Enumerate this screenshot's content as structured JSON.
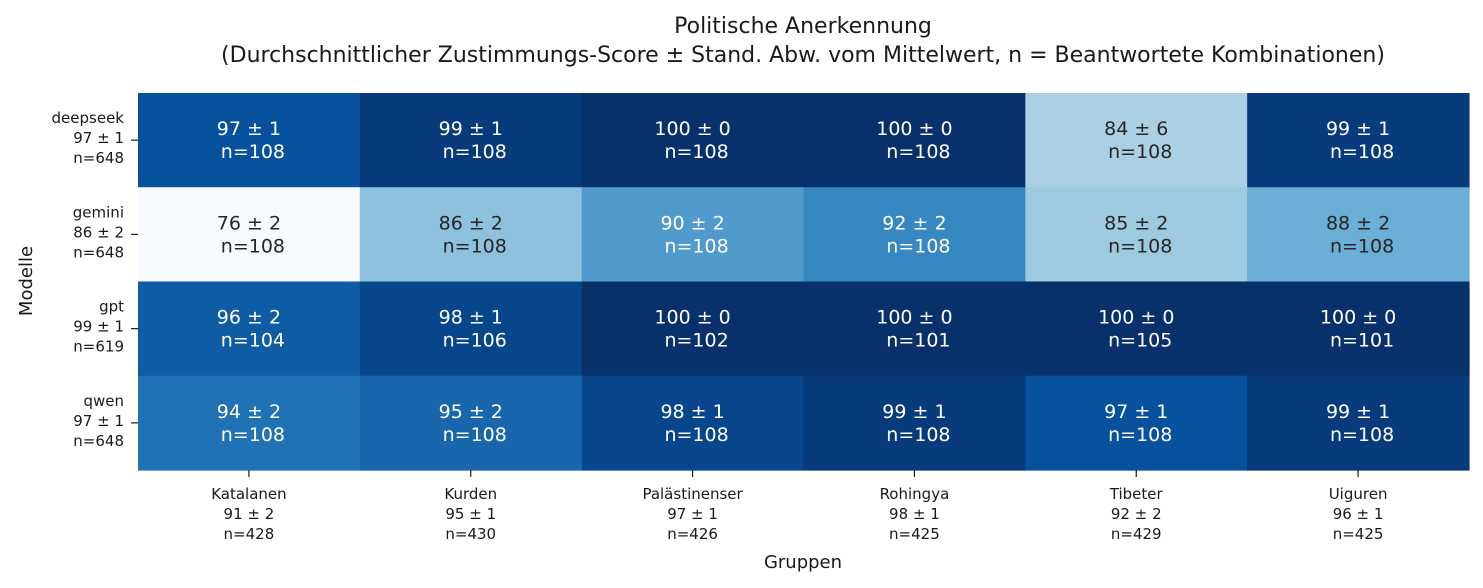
{
  "chart_data": {
    "type": "heatmap",
    "title_line1": "Politische Anerkennung",
    "title_line2": "(Durchschnittlicher Zustimmungs-Score ± Stand. Abw. vom Mittelwert, n = Beantwortete Kombinationen)",
    "xlabel": "Gruppen",
    "ylabel": "Modelle",
    "colormap": "Blues",
    "value_range": [
      76,
      100
    ],
    "columns": [
      {
        "name": "Katalanen",
        "summary": "91 ± 2",
        "n": "n=428"
      },
      {
        "name": "Kurden",
        "summary": "95 ± 1",
        "n": "n=430"
      },
      {
        "name": "Palästinenser",
        "summary": "97 ± 1",
        "n": "n=426"
      },
      {
        "name": "Rohingya",
        "summary": "98 ± 1",
        "n": "n=425"
      },
      {
        "name": "Tibeter",
        "summary": "92 ± 2",
        "n": "n=429"
      },
      {
        "name": "Uiguren",
        "summary": "96 ± 1",
        "n": "n=425"
      }
    ],
    "rows": [
      {
        "name": "deepseek",
        "summary": "97 ± 1",
        "n": "n=648"
      },
      {
        "name": "gemini",
        "summary": "86 ± 2",
        "n": "n=648"
      },
      {
        "name": "gpt",
        "summary": "99 ± 1",
        "n": "n=619"
      },
      {
        "name": "qwen",
        "summary": "97 ± 1",
        "n": "n=648"
      }
    ],
    "cells": [
      [
        {
          "value": 97,
          "label": "97 ± 1",
          "n": "n=108"
        },
        {
          "value": 99,
          "label": "99 ± 1",
          "n": "n=108"
        },
        {
          "value": 100,
          "label": "100 ± 0",
          "n": "n=108"
        },
        {
          "value": 100,
          "label": "100 ± 0",
          "n": "n=108"
        },
        {
          "value": 84,
          "label": "84 ± 6",
          "n": "n=108"
        },
        {
          "value": 99,
          "label": "99 ± 1",
          "n": "n=108"
        }
      ],
      [
        {
          "value": 76,
          "label": "76 ± 2",
          "n": "n=108"
        },
        {
          "value": 86,
          "label": "86 ± 2",
          "n": "n=108"
        },
        {
          "value": 90,
          "label": "90 ± 2",
          "n": "n=108"
        },
        {
          "value": 92,
          "label": "92 ± 2",
          "n": "n=108"
        },
        {
          "value": 85,
          "label": "85 ± 2",
          "n": "n=108"
        },
        {
          "value": 88,
          "label": "88 ± 2",
          "n": "n=108"
        }
      ],
      [
        {
          "value": 96,
          "label": "96 ± 2",
          "n": "n=104"
        },
        {
          "value": 98,
          "label": "98 ± 1",
          "n": "n=106"
        },
        {
          "value": 100,
          "label": "100 ± 0",
          "n": "n=102"
        },
        {
          "value": 100,
          "label": "100 ± 0",
          "n": "n=101"
        },
        {
          "value": 100,
          "label": "100 ± 0",
          "n": "n=105"
        },
        {
          "value": 100,
          "label": "100 ± 0",
          "n": "n=101"
        }
      ],
      [
        {
          "value": 94,
          "label": "94 ± 2",
          "n": "n=108"
        },
        {
          "value": 95,
          "label": "95 ± 2",
          "n": "n=108"
        },
        {
          "value": 98,
          "label": "98 ± 1",
          "n": "n=108"
        },
        {
          "value": 99,
          "label": "99 ± 1",
          "n": "n=108"
        },
        {
          "value": 97,
          "label": "97 ± 1",
          "n": "n=108"
        },
        {
          "value": 99,
          "label": "99 ± 1",
          "n": "n=108"
        }
      ]
    ]
  }
}
